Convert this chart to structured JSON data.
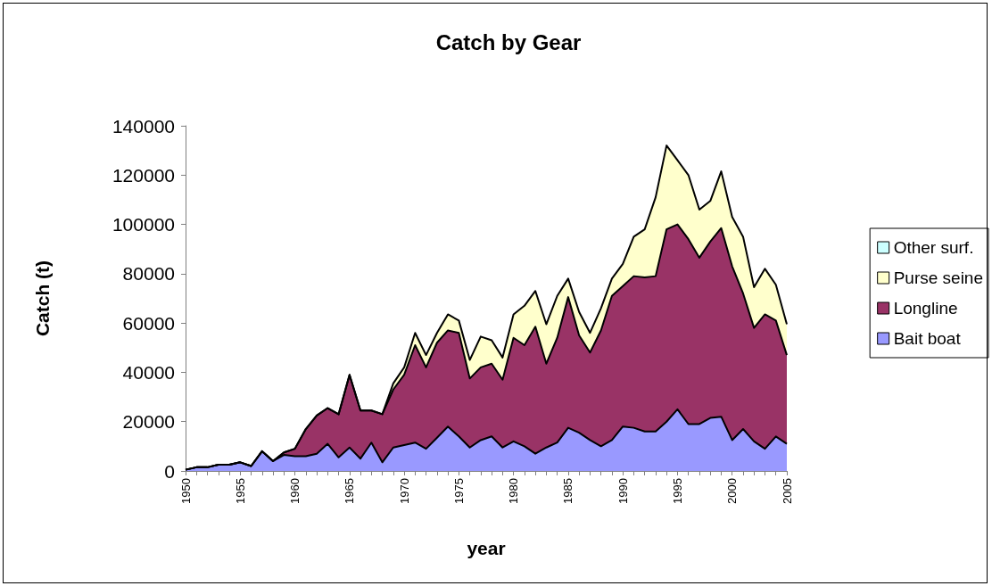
{
  "chart_data": {
    "type": "area",
    "title": "Catch by Gear",
    "xlabel": "year",
    "ylabel": "Catch (t)",
    "categories": [
      "1950",
      null,
      null,
      null,
      null,
      "1955",
      null,
      null,
      null,
      null,
      "1960",
      null,
      null,
      null,
      null,
      "1965",
      null,
      null,
      null,
      null,
      "1970",
      null,
      null,
      null,
      null,
      "1975",
      null,
      null,
      null,
      null,
      "1980",
      null,
      null,
      null,
      null,
      "1985",
      null,
      null,
      null,
      null,
      "1990",
      null,
      null,
      null,
      null,
      "1995",
      null,
      null,
      null,
      null,
      "2000",
      null,
      null,
      null,
      null,
      "2005"
    ],
    "stacked": true,
    "legend": "right",
    "ylim": [
      0,
      140000
    ],
    "yticks": [
      0,
      20000,
      40000,
      60000,
      80000,
      100000,
      120000,
      140000
    ],
    "series": [
      {
        "name": "Bait boat",
        "color": "#9999ff",
        "values": [
          500,
          1500,
          1500,
          2500,
          2500,
          3500,
          2000,
          8000,
          4000,
          6500,
          6000,
          6000,
          7000,
          11000,
          5500,
          9500,
          5000,
          11500,
          3500,
          9500,
          10500,
          11500,
          9000,
          13500,
          18000,
          14000,
          9500,
          12500,
          14000,
          9500,
          12000,
          10000,
          7000,
          9500,
          11500,
          17500,
          15500,
          12500,
          10000,
          12500,
          18000,
          17500,
          16000,
          16000,
          20000,
          25000,
          19000,
          19000,
          21500,
          22000,
          12500,
          17000,
          12000,
          9000,
          14000,
          11000
        ]
      },
      {
        "name": "Longline",
        "color": "#993366",
        "values": [
          0,
          0,
          0,
          0,
          0,
          0,
          0,
          0,
          0,
          1000,
          3000,
          11000,
          15500,
          14500,
          17500,
          29500,
          19500,
          13000,
          19500,
          23500,
          28500,
          39500,
          33000,
          38500,
          39000,
          42000,
          28000,
          29500,
          29500,
          27500,
          42000,
          41000,
          51500,
          34000,
          42500,
          53000,
          39500,
          35500,
          47000,
          58500,
          57000,
          61500,
          62500,
          63000,
          78000,
          75000,
          75000,
          67500,
          71500,
          76500,
          70500,
          55000,
          46000,
          54500,
          47000,
          36000
        ]
      },
      {
        "name": "Purse seine",
        "color": "#ffffcc",
        "values": [
          0,
          0,
          0,
          0,
          0,
          0,
          0,
          0,
          0,
          0,
          0,
          0,
          0,
          0,
          0,
          0,
          0,
          0,
          0,
          2500,
          3000,
          5000,
          5000,
          4000,
          6500,
          5000,
          7500,
          12500,
          9500,
          9000,
          9500,
          16000,
          14500,
          16000,
          17000,
          7500,
          9500,
          8000,
          9000,
          7000,
          9000,
          16000,
          19500,
          32000,
          34000,
          26000,
          26000,
          19500,
          16500,
          23000,
          20000,
          23000,
          16500,
          18500,
          14500,
          12500
        ]
      },
      {
        "name": "Other surf.",
        "color": "#ccffff",
        "values": [
          null,
          null,
          null,
          null,
          null,
          null,
          null,
          null,
          null,
          null,
          null,
          null,
          null,
          null,
          null,
          null,
          null,
          null,
          null,
          null,
          null,
          null,
          null,
          null,
          null,
          null,
          null,
          null,
          null,
          null,
          null,
          null,
          null,
          null,
          null,
          null,
          null,
          null,
          null,
          null,
          null,
          null,
          null,
          null,
          null,
          null,
          null,
          null,
          null,
          null,
          null,
          null,
          null,
          null,
          null,
          null
        ]
      }
    ]
  }
}
